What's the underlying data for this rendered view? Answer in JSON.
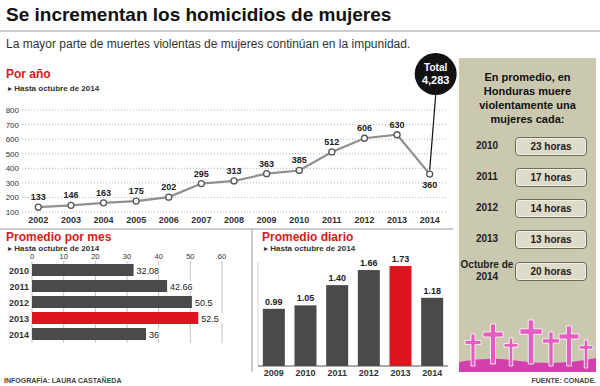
{
  "header": {
    "title": "Se incrementan los homicidios de mujeres",
    "subtitle": "La mayor parte de muertes violentas de mujeres continúan en la impunidad."
  },
  "chart_data": [
    {
      "type": "line",
      "title": "Por año",
      "subtitle": "▸ Hasta octubre de 2014",
      "categories": [
        "2002",
        "2003",
        "2004",
        "2005",
        "2006",
        "2007",
        "2008",
        "2009",
        "2010",
        "2011",
        "2012",
        "2013",
        "2014"
      ],
      "values": [
        133,
        146,
        163,
        175,
        202,
        295,
        313,
        363,
        385,
        512,
        606,
        630,
        360
      ],
      "color": "#8f8f8f",
      "marker": "circle",
      "ylim": [
        100,
        800
      ],
      "yticks": [
        100,
        200,
        300,
        400,
        500,
        600,
        700,
        800
      ],
      "grid": true,
      "data_labels": true,
      "annotations": [
        "Total",
        "4,283"
      ]
    },
    {
      "type": "bar",
      "orientation": "horizontal",
      "title": "Promedio por mes",
      "subtitle": "▸ Hasta octubre de 2014",
      "categories": [
        "2010",
        "2011",
        "2012",
        "2013",
        "2014"
      ],
      "values": [
        32.08,
        42.66,
        50.5,
        52.5,
        36
      ],
      "colors": [
        "#4a4a4a",
        "#4a4a4a",
        "#4a4a4a",
        "#e0141e",
        "#4a4a4a"
      ],
      "xlim": [
        0,
        60
      ],
      "xticks": [
        0,
        10,
        20,
        30,
        40,
        50,
        60
      ],
      "grid": true,
      "data_labels": true
    },
    {
      "type": "bar",
      "title": "Promedio diario",
      "subtitle": "▸ Hasta octubre de 2014",
      "categories": [
        "2009",
        "2010",
        "2011",
        "2012",
        "2013",
        "2014"
      ],
      "values": [
        0.99,
        1.05,
        1.4,
        1.66,
        1.73,
        1.18
      ],
      "value_labels": [
        "0.99",
        "1.05",
        "1.40",
        "1.66",
        "1.73",
        "1.18"
      ],
      "colors": [
        "#4a4a4a",
        "#4a4a4a",
        "#4a4a4a",
        "#4a4a4a",
        "#e0141e",
        "#4a4a4a"
      ],
      "ylim": [
        0,
        1.8
      ],
      "tick_labels": "x",
      "data_labels": true
    }
  ],
  "panel": {
    "title": "En promedio, en Honduras muere violentamente una mujeres cada:",
    "rows": [
      {
        "label": "2010",
        "value": "23 horas"
      },
      {
        "label": "2011",
        "value": "17 horas"
      },
      {
        "label": "2012",
        "value": "14 horas"
      },
      {
        "label": "2013",
        "value": "13 horas"
      },
      {
        "label": "Octubre de 2014",
        "value": "20 horas"
      }
    ]
  },
  "footer": {
    "credit": "INFOGRAFÍA: LAURA CASTAÑEDA",
    "source": "FUENTE: CONADE."
  }
}
